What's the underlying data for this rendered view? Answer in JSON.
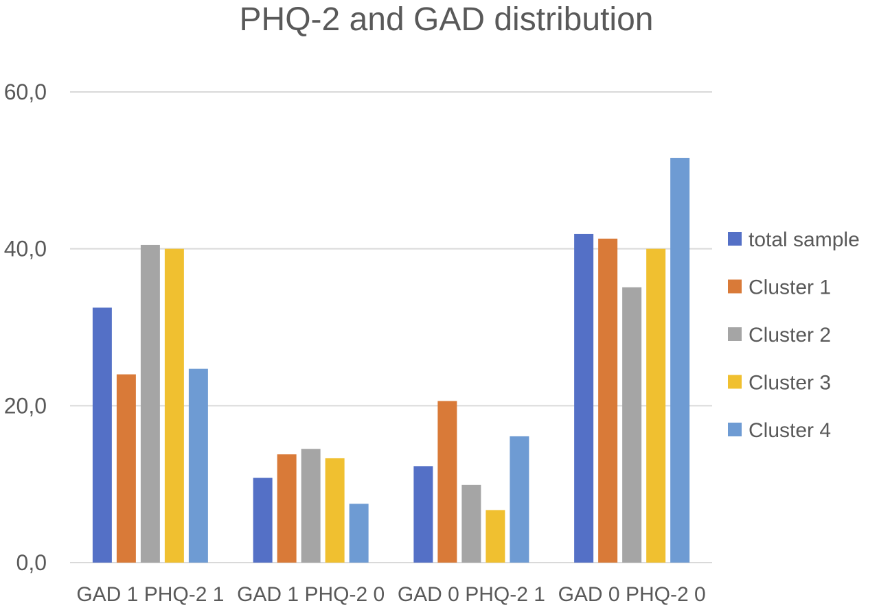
{
  "chart_data": {
    "type": "bar",
    "title": "PHQ-2 and GAD distribution",
    "xlabel": "",
    "ylabel": "",
    "ylim": [
      0,
      60
    ],
    "yticks": [
      "0,0",
      "20,0",
      "40,0",
      "60,0"
    ],
    "grid": true,
    "legend_position": "right",
    "categories": [
      "GAD 1  PHQ-2 1",
      "GAD 1  PHQ-2 0",
      "GAD 0  PHQ-2 1",
      "GAD 0  PHQ-2 0"
    ],
    "series": [
      {
        "name": "total sample",
        "color": "#5470c6",
        "values": [
          32.5,
          10.8,
          12.3,
          41.9
        ]
      },
      {
        "name": "Cluster 1",
        "color": "#d97a38",
        "values": [
          24.0,
          13.8,
          20.6,
          41.3
        ]
      },
      {
        "name": "Cluster 2",
        "color": "#a5a5a5",
        "values": [
          40.5,
          14.5,
          9.9,
          35.1
        ]
      },
      {
        "name": "Cluster 3",
        "color": "#f0c030",
        "values": [
          40.0,
          13.3,
          6.7,
          40.0
        ]
      },
      {
        "name": "Cluster 4",
        "color": "#6e9bd3",
        "values": [
          24.7,
          7.5,
          16.1,
          51.6
        ]
      }
    ]
  }
}
